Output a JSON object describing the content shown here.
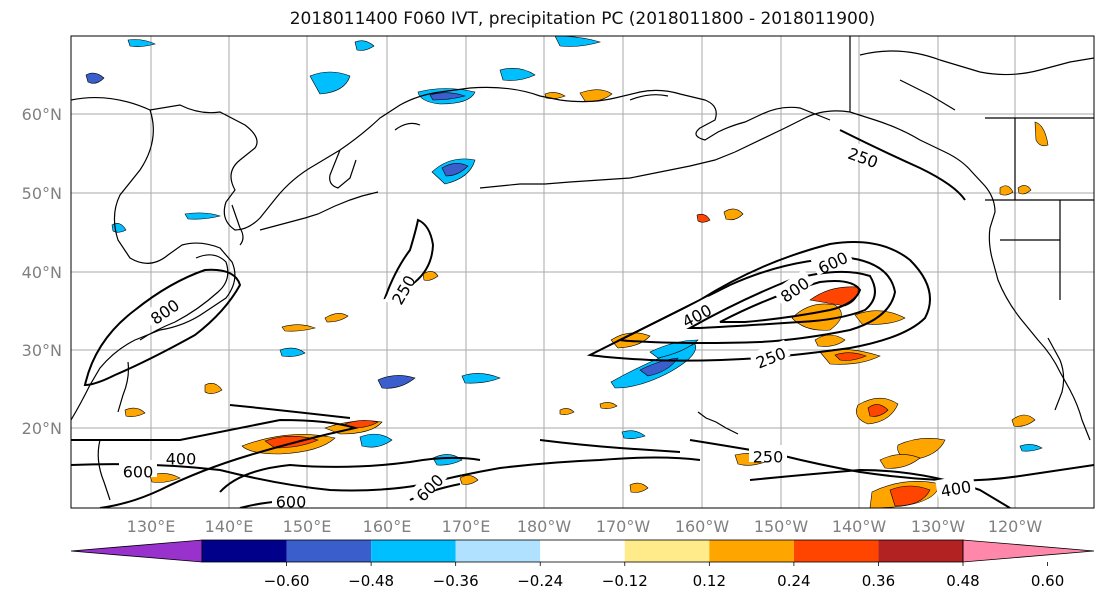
{
  "title": "2018011400 F060 IVT, precipitation PC (2018011800 - 2018011900)",
  "lat_labels": [
    "60°N",
    "50°N",
    "40°N",
    "30°N",
    "20°N"
  ],
  "lon_labels": [
    "130°E",
    "140°E",
    "150°E",
    "160°E",
    "170°E",
    "180°W",
    "170°W",
    "160°W",
    "150°W",
    "140°W",
    "130°W",
    "120°W"
  ],
  "contour_labels": [
    "250",
    "250",
    "250",
    "250",
    "400",
    "400",
    "400",
    "600",
    "600",
    "600",
    "600",
    "800",
    "800"
  ],
  "colorbar": {
    "tick_labels": [
      "−0.60",
      "−0.48",
      "−0.36",
      "−0.24",
      "−0.12",
      "0.12",
      "0.24",
      "0.36",
      "0.48",
      "0.60"
    ],
    "colors": [
      "#9932cc",
      "#00008b",
      "#3a5fcd",
      "#00bfff",
      "#b0e2ff",
      "#ffffff",
      "#ffeb8a",
      "#ffa500",
      "#ff4500",
      "#b22222",
      "#ff88aa"
    ]
  },
  "colors": {
    "line": "#000000",
    "grid": "#aaaaaa",
    "axis_label": "#808080"
  }
}
